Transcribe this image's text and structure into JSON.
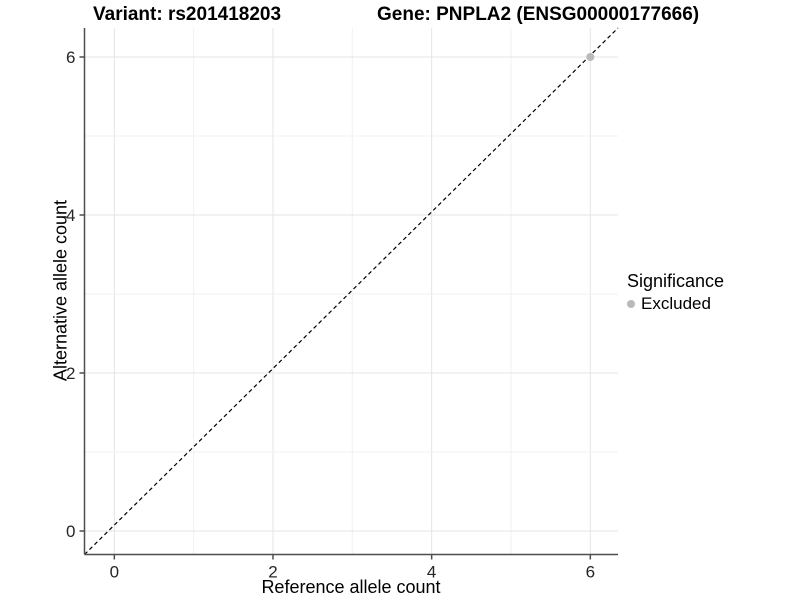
{
  "titles": {
    "variant": "Variant: rs201418203",
    "gene": "Gene: PNPLA2 (ENSG00000177666)"
  },
  "axes": {
    "x": {
      "label": "Reference allele count",
      "ticks": [
        "0",
        "2",
        "4",
        "6"
      ]
    },
    "y": {
      "label": "Alternative allele count",
      "ticks": [
        "0",
        "2",
        "4",
        "6"
      ]
    }
  },
  "legend": {
    "title": "Significance",
    "items": [
      {
        "label": "Excluded",
        "color": "#b9b9b9"
      }
    ]
  },
  "chart_data": {
    "type": "scatter",
    "title": "Variant: rs201418203  /  Gene: PNPLA2 (ENSG00000177666)",
    "xlabel": "Reference allele count",
    "ylabel": "Alternative allele count",
    "xlim": [
      -0.37,
      6.35
    ],
    "ylim": [
      -0.3,
      6.67
    ],
    "xticks": [
      0,
      2,
      4,
      6
    ],
    "yticks": [
      0,
      2,
      4,
      6
    ],
    "x_gridlines": [
      0,
      1,
      2,
      3,
      4,
      5,
      6
    ],
    "y_gridlines": [
      0,
      1,
      2,
      3,
      4,
      5,
      6
    ],
    "grid": "major+minor",
    "legend_position": "right",
    "series": [
      {
        "name": "Excluded",
        "color": "#b9b9b9",
        "points": [
          [
            6,
            6
          ]
        ]
      }
    ],
    "reference_line": {
      "equation": "y = x",
      "style": "dashed",
      "color": "#000000"
    }
  }
}
